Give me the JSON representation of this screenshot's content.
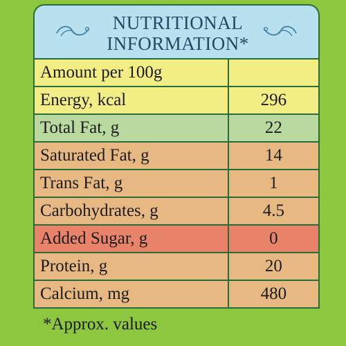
{
  "header": {
    "line1": "NUTRITIONAL",
    "line2": "INFORMATION*"
  },
  "table": {
    "rows": [
      {
        "label": "Amount per 100g",
        "value": ""
      },
      {
        "label": "Energy, kcal",
        "value": "296"
      },
      {
        "label": "Total Fat, g",
        "value": "22"
      },
      {
        "label": "Saturated Fat, g",
        "value": "14"
      },
      {
        "label": "Trans Fat, g",
        "value": "1"
      },
      {
        "label": "Carbohydrates, g",
        "value": "4.5"
      },
      {
        "label": "Added Sugar, g",
        "value": "0"
      },
      {
        "label": "Protein, g",
        "value": "20"
      },
      {
        "label": "Calcium, mg",
        "value": "480"
      }
    ]
  },
  "footnote": "*Approx. values",
  "colors": {
    "background_green": "#8dc63f",
    "header_blue": "#b9e0ee",
    "row_yellow": "#f2ee85",
    "row_green": "#b9d9a0",
    "row_tan": "#e8b883",
    "row_red": "#e8836a",
    "border": "#2a6b3a"
  },
  "icons": [
    "swirl-ornament-icon"
  ]
}
